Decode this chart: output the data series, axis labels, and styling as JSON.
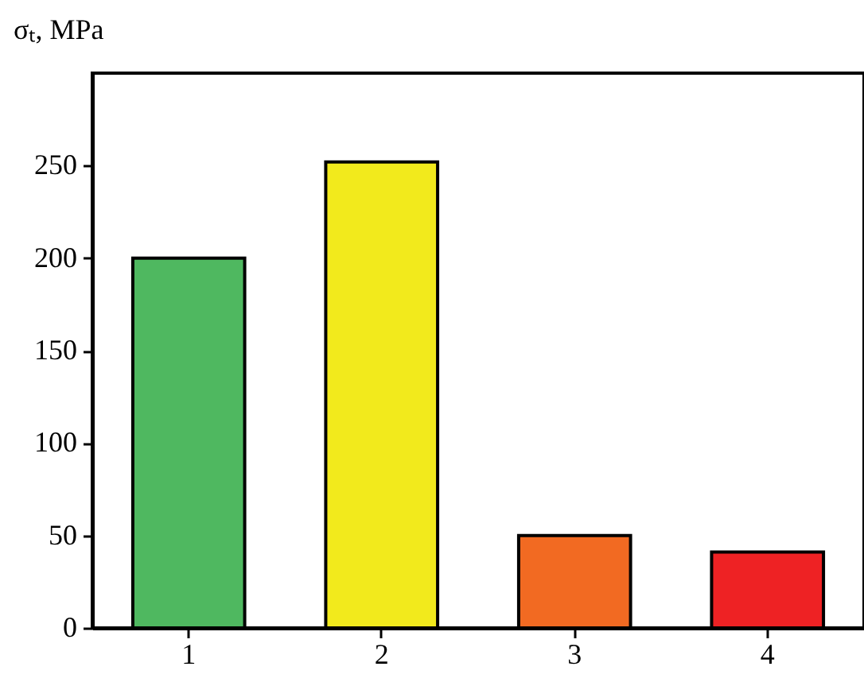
{
  "chart_data": {
    "type": "bar",
    "ylabel": "σₜ, MPa",
    "categories": [
      "1",
      "2",
      "3",
      "4"
    ],
    "values": [
      200,
      252,
      50,
      41
    ],
    "colors": [
      "#4fb860",
      "#f2ea1c",
      "#f26a22",
      "#ee2224"
    ],
    "ylim": [
      0,
      300
    ],
    "yticks": [
      0,
      50,
      100,
      150,
      200,
      250
    ],
    "grid": false,
    "legend": false
  }
}
